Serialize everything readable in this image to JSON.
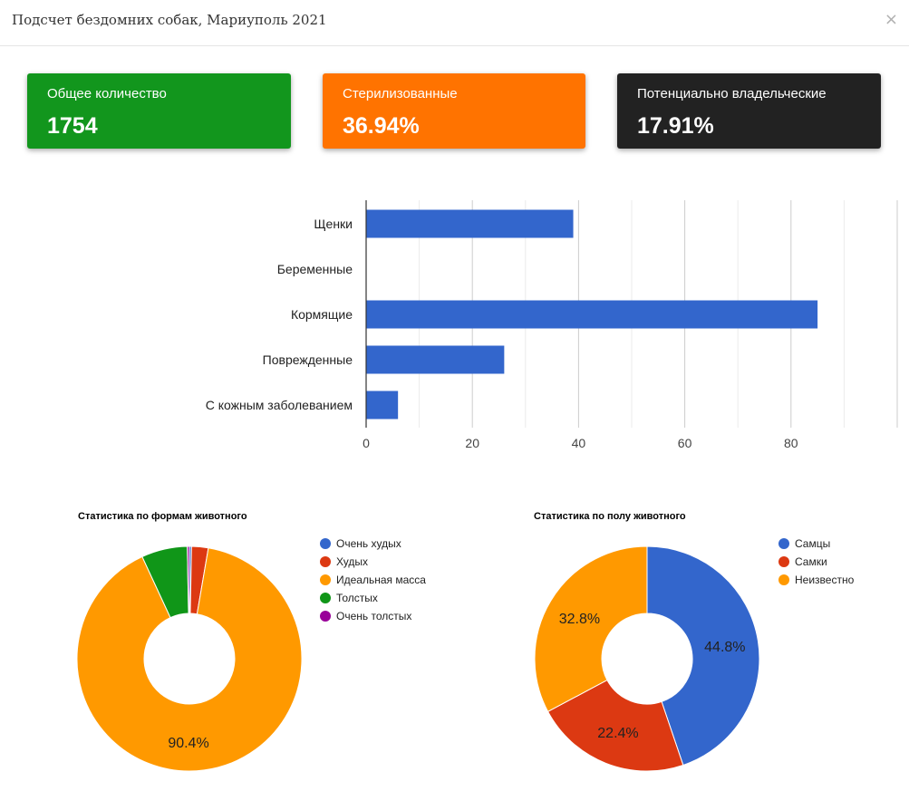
{
  "modal": {
    "title": "Подсчет бездомних собак, Мариуполь 2021",
    "close_label": "×"
  },
  "cards": [
    {
      "label": "Общее количество",
      "value": "1754",
      "color": "#12961d"
    },
    {
      "label": "Стерилизованные",
      "value": "36.94%",
      "color": "#ff7300"
    },
    {
      "label": "Потенциально владельческие",
      "value": "17.91%",
      "color": "#222222"
    }
  ],
  "chart_data": [
    {
      "type": "bar",
      "orientation": "horizontal",
      "title": "",
      "categories": [
        "Щенки",
        "Беременные",
        "Кормящие",
        "Поврежденные",
        "С кожным заболеванием"
      ],
      "values": [
        39,
        0,
        85,
        26,
        6
      ],
      "xlim": [
        0,
        100
      ],
      "xticks": [
        0,
        20,
        40,
        60,
        80
      ],
      "xtick_labels": [
        "0",
        "20",
        "40",
        "60",
        "80"
      ],
      "grid": true,
      "color": "#3366cc"
    },
    {
      "type": "pie",
      "donut": true,
      "title": "Статистика по формам животного",
      "legend_position": "right",
      "labels": [
        "Очень худых",
        "Худых",
        "Идеальная масса",
        "Толстых",
        "Очень толстых"
      ],
      "values": [
        0.3,
        2.4,
        90.4,
        6.6,
        0.3
      ],
      "colors": [
        "#3366cc",
        "#dc3912",
        "#ff9900",
        "#109618",
        "#990099"
      ],
      "data_labels": [
        "",
        "",
        "90.4%",
        "",
        ""
      ]
    },
    {
      "type": "pie",
      "donut": true,
      "title": "Статистика по полу животного",
      "legend_position": "right",
      "labels": [
        "Самцы",
        "Самки",
        "Неизвестно"
      ],
      "values": [
        44.8,
        22.4,
        32.8
      ],
      "colors": [
        "#3366cc",
        "#dc3912",
        "#ff9900"
      ],
      "data_labels": [
        "44.8%",
        "22.4%",
        "32.8%"
      ]
    }
  ]
}
